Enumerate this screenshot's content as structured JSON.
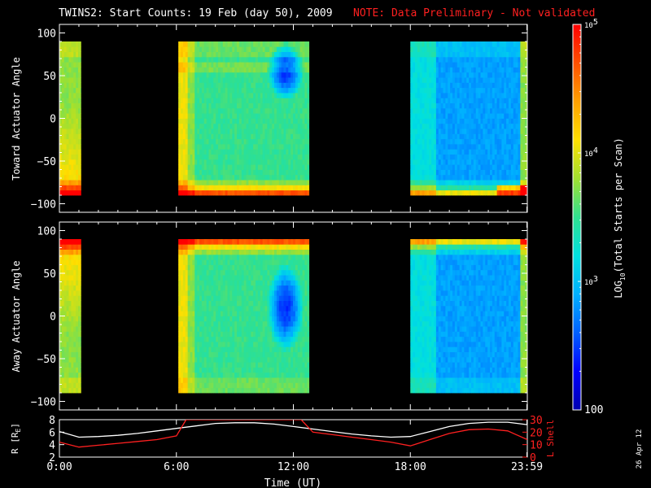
{
  "title": {
    "main": "TWINS2: Start Counts: 19 Feb (day  50), 2009",
    "note": "NOTE: Data Preliminary - Not validated",
    "note_color": "#ff2020"
  },
  "date_stamp": "26 Apr 12",
  "chart_data": [
    {
      "type": "heatmap",
      "name": "toward",
      "ylabel": "Toward Actuator Angle",
      "xlim": [
        0,
        24
      ],
      "ylim": [
        -110,
        110
      ],
      "yticks": [
        -100,
        -50,
        0,
        50,
        100
      ],
      "data_y_range": [
        -90,
        90
      ],
      "coverage_hours": [
        [
          0,
          1.1
        ],
        [
          6.1,
          12.8
        ],
        [
          18.0,
          24.0
        ]
      ],
      "features": "high counts near -90 deg; low-count depletion near 12 UT between -40 and 60 deg"
    },
    {
      "type": "heatmap",
      "name": "away",
      "ylabel": "Away Actuator Angle",
      "xlim": [
        0,
        24
      ],
      "ylim": [
        -110,
        110
      ],
      "yticks": [
        -100,
        -50,
        0,
        50,
        100
      ],
      "data_y_range": [
        -90,
        90
      ],
      "coverage_hours": [
        [
          0,
          1.1
        ],
        [
          6.1,
          12.8
        ],
        [
          18.0,
          24.0
        ]
      ],
      "features": "high counts near +90 deg; low-count depletion near 12 UT"
    },
    {
      "type": "line",
      "name": "ephemeris",
      "xlabel": "Time (UT)",
      "xticks": [
        "0:00",
        "6:00",
        "12:00",
        "18:00",
        "23:59"
      ],
      "xtick_hours": [
        0,
        6,
        12,
        18,
        23.98
      ],
      "ylabel_left": "R [R",
      "ylabel_left_sub": "E",
      "ylabel_left_end": "]",
      "ylabel_right": "L Shell",
      "ylim_left": [
        2,
        8
      ],
      "yticks_left": [
        2,
        4,
        6,
        8
      ],
      "ylim_right": [
        0,
        30
      ],
      "yticks_right": [
        0,
        10,
        20,
        30
      ],
      "series": [
        {
          "name": "R",
          "color": "#ffffff",
          "axis": "left",
          "x": [
            0,
            1,
            2,
            3,
            4,
            5,
            6,
            7,
            8,
            9,
            10,
            11,
            12,
            13,
            14,
            15,
            16,
            17,
            18,
            19,
            20,
            21,
            22,
            23,
            24
          ],
          "y": [
            6.1,
            5.2,
            5.3,
            5.5,
            5.8,
            6.2,
            6.6,
            7.0,
            7.4,
            7.5,
            7.5,
            7.3,
            6.9,
            6.5,
            6.1,
            5.7,
            5.4,
            5.2,
            5.3,
            6.1,
            6.9,
            7.4,
            7.6,
            7.6,
            7.2
          ]
        },
        {
          "name": "L Shell",
          "color": "#ff2020",
          "axis": "right",
          "x": [
            0,
            1,
            2,
            3,
            4,
            5,
            6,
            6.5,
            12.4,
            13,
            14,
            15,
            16,
            17,
            18,
            19,
            20,
            21,
            22,
            23,
            24
          ],
          "y": [
            12,
            8,
            9.5,
            11,
            12.5,
            14,
            17,
            30,
            30,
            20,
            18,
            16,
            14,
            12,
            9,
            14,
            19,
            22,
            22.5,
            21,
            14
          ]
        }
      ]
    }
  ],
  "colorbar": {
    "label_pre": "LOG",
    "label_sub": "10",
    "label_post": "(Total Starts per Scan)",
    "ticks": [
      {
        "value": 100,
        "base": "100",
        "exp": ""
      },
      {
        "value": 1000,
        "base": "10",
        "exp": "3"
      },
      {
        "value": 10000,
        "base": "10",
        "exp": "4"
      },
      {
        "value": 100000,
        "base": "10",
        "exp": "5"
      }
    ],
    "range": [
      100,
      100000
    ],
    "colors": [
      "#0000b0",
      "#0000ff",
      "#0060ff",
      "#00b0ff",
      "#00e0e0",
      "#30e090",
      "#a0e030",
      "#ffe000",
      "#ffa000",
      "#ff5000",
      "#ff0000"
    ]
  }
}
